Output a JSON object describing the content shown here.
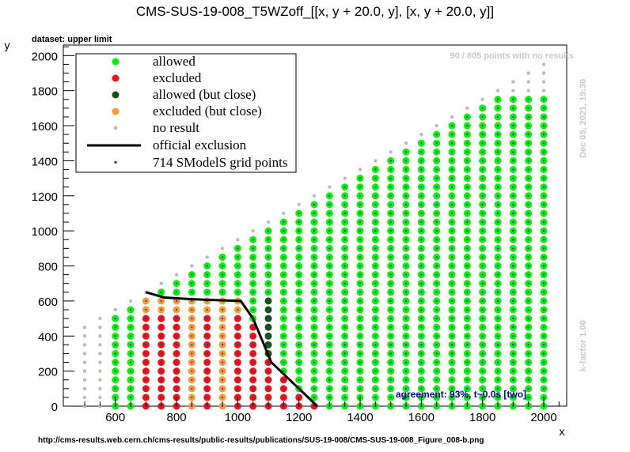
{
  "header": {
    "title": "CMS-SUS-19-008_T5WZoff_[[x, y + 20.0, y], [x, y + 20.0, y]]",
    "dataset_label": "dataset: upper limit",
    "no_results_note": "90 / 805 points with no results",
    "timestamp": "Dec 05, 2021, 19:36",
    "kfactor": "k-factor 1.00",
    "agreement": "agreement: 93%, t~0.0s [two]",
    "footer_url": "http://cms-results.web.cern.ch/cms-results/public-results/publications/SUS-19-008/CMS-SUS-19-008_Figure_008-b.png"
  },
  "legend": {
    "allowed": "allowed",
    "excluded": "excluded",
    "allowed_close": "allowed (but close)",
    "excluded_close": "excluded (but close)",
    "no_result": "no result",
    "official": "official exclusion",
    "grid": "714 SModelS grid points"
  },
  "colors": {
    "allowed": "#00ee00",
    "excluded": "#ee1111",
    "allowed_close": "#115511",
    "excluded_close": "#ff9933",
    "no_result": "#bbbbbb",
    "grid": "#3333cc",
    "official": "#000000",
    "note_gray": "#c8c8c8",
    "agreement": "#000088"
  },
  "chart_data": {
    "type": "scatter",
    "xlabel": "x",
    "ylabel": "y",
    "xlim": [
      430,
      2075
    ],
    "ylim": [
      0,
      2060
    ],
    "x_ticks": [
      600,
      800,
      1000,
      1200,
      1400,
      1600,
      1800,
      2000
    ],
    "y_ticks": [
      0,
      200,
      400,
      600,
      800,
      1000,
      1200,
      1400,
      1600,
      1800,
      2000
    ],
    "grid": false,
    "x_grid_start": 500,
    "x_grid_step": 50,
    "y_grid_step": 50,
    "official_exclusion": [
      [
        700,
        650
      ],
      [
        760,
        620
      ],
      [
        850,
        610
      ],
      [
        1010,
        600
      ],
      [
        1050,
        500
      ],
      [
        1110,
        250
      ],
      [
        1260,
        0
      ]
    ]
  }
}
